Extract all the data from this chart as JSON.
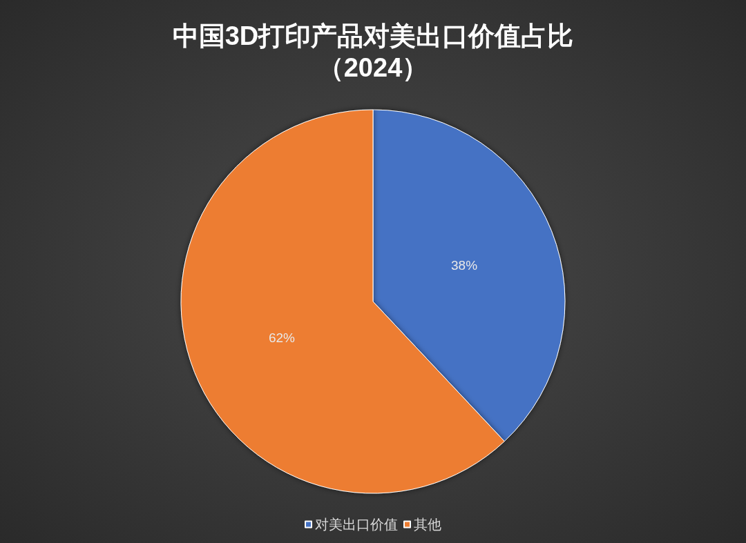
{
  "chart_data": {
    "type": "pie",
    "title": "中国3D打印产品对美出口价值占比",
    "subtitle": "（2024）",
    "categories": [
      "对美出口价值",
      "其他"
    ],
    "values": [
      38,
      62
    ],
    "colors": [
      "#4472c4",
      "#ed7d31"
    ],
    "value_labels": [
      "38%",
      "62%"
    ],
    "legend": "bottom"
  }
}
